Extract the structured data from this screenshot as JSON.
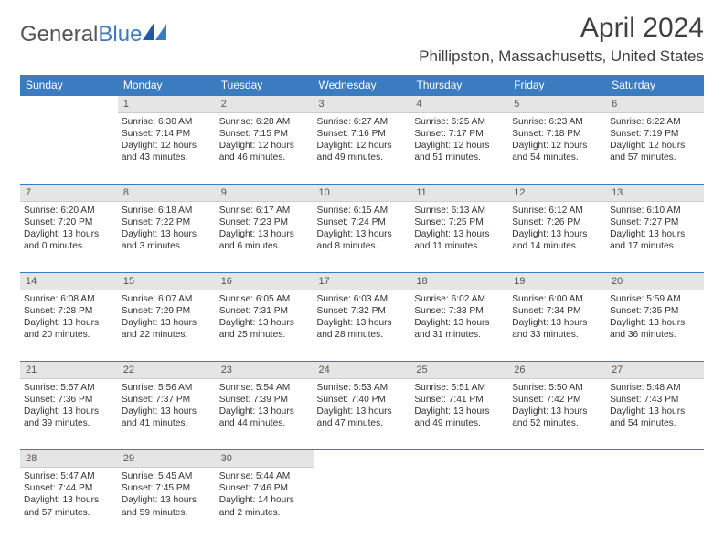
{
  "logo": {
    "text_general": "General",
    "text_blue": "Blue"
  },
  "title": "April 2024",
  "location": "Phillipston, Massachusetts, United States",
  "colors": {
    "header_bg": "#3b7bbf",
    "header_fg": "#ffffff",
    "daynum_bg": "#e5e5e5",
    "border_top": "#3b7bbf",
    "text": "#333333",
    "page_bg": "#ffffff"
  },
  "columns": [
    "Sunday",
    "Monday",
    "Tuesday",
    "Wednesday",
    "Thursday",
    "Friday",
    "Saturday"
  ],
  "weeks": [
    {
      "nums": [
        "",
        "1",
        "2",
        "3",
        "4",
        "5",
        "6"
      ],
      "cells": [
        null,
        {
          "sunrise": "6:30 AM",
          "sunset": "7:14 PM",
          "daylight": "12 hours and 43 minutes."
        },
        {
          "sunrise": "6:28 AM",
          "sunset": "7:15 PM",
          "daylight": "12 hours and 46 minutes."
        },
        {
          "sunrise": "6:27 AM",
          "sunset": "7:16 PM",
          "daylight": "12 hours and 49 minutes."
        },
        {
          "sunrise": "6:25 AM",
          "sunset": "7:17 PM",
          "daylight": "12 hours and 51 minutes."
        },
        {
          "sunrise": "6:23 AM",
          "sunset": "7:18 PM",
          "daylight": "12 hours and 54 minutes."
        },
        {
          "sunrise": "6:22 AM",
          "sunset": "7:19 PM",
          "daylight": "12 hours and 57 minutes."
        }
      ]
    },
    {
      "nums": [
        "7",
        "8",
        "9",
        "10",
        "11",
        "12",
        "13"
      ],
      "cells": [
        {
          "sunrise": "6:20 AM",
          "sunset": "7:20 PM",
          "daylight": "13 hours and 0 minutes."
        },
        {
          "sunrise": "6:18 AM",
          "sunset": "7:22 PM",
          "daylight": "13 hours and 3 minutes."
        },
        {
          "sunrise": "6:17 AM",
          "sunset": "7:23 PM",
          "daylight": "13 hours and 6 minutes."
        },
        {
          "sunrise": "6:15 AM",
          "sunset": "7:24 PM",
          "daylight": "13 hours and 8 minutes."
        },
        {
          "sunrise": "6:13 AM",
          "sunset": "7:25 PM",
          "daylight": "13 hours and 11 minutes."
        },
        {
          "sunrise": "6:12 AM",
          "sunset": "7:26 PM",
          "daylight": "13 hours and 14 minutes."
        },
        {
          "sunrise": "6:10 AM",
          "sunset": "7:27 PM",
          "daylight": "13 hours and 17 minutes."
        }
      ]
    },
    {
      "nums": [
        "14",
        "15",
        "16",
        "17",
        "18",
        "19",
        "20"
      ],
      "cells": [
        {
          "sunrise": "6:08 AM",
          "sunset": "7:28 PM",
          "daylight": "13 hours and 20 minutes."
        },
        {
          "sunrise": "6:07 AM",
          "sunset": "7:29 PM",
          "daylight": "13 hours and 22 minutes."
        },
        {
          "sunrise": "6:05 AM",
          "sunset": "7:31 PM",
          "daylight": "13 hours and 25 minutes."
        },
        {
          "sunrise": "6:03 AM",
          "sunset": "7:32 PM",
          "daylight": "13 hours and 28 minutes."
        },
        {
          "sunrise": "6:02 AM",
          "sunset": "7:33 PM",
          "daylight": "13 hours and 31 minutes."
        },
        {
          "sunrise": "6:00 AM",
          "sunset": "7:34 PM",
          "daylight": "13 hours and 33 minutes."
        },
        {
          "sunrise": "5:59 AM",
          "sunset": "7:35 PM",
          "daylight": "13 hours and 36 minutes."
        }
      ]
    },
    {
      "nums": [
        "21",
        "22",
        "23",
        "24",
        "25",
        "26",
        "27"
      ],
      "cells": [
        {
          "sunrise": "5:57 AM",
          "sunset": "7:36 PM",
          "daylight": "13 hours and 39 minutes."
        },
        {
          "sunrise": "5:56 AM",
          "sunset": "7:37 PM",
          "daylight": "13 hours and 41 minutes."
        },
        {
          "sunrise": "5:54 AM",
          "sunset": "7:39 PM",
          "daylight": "13 hours and 44 minutes."
        },
        {
          "sunrise": "5:53 AM",
          "sunset": "7:40 PM",
          "daylight": "13 hours and 47 minutes."
        },
        {
          "sunrise": "5:51 AM",
          "sunset": "7:41 PM",
          "daylight": "13 hours and 49 minutes."
        },
        {
          "sunrise": "5:50 AM",
          "sunset": "7:42 PM",
          "daylight": "13 hours and 52 minutes."
        },
        {
          "sunrise": "5:48 AM",
          "sunset": "7:43 PM",
          "daylight": "13 hours and 54 minutes."
        }
      ]
    },
    {
      "nums": [
        "28",
        "29",
        "30",
        "",
        "",
        "",
        ""
      ],
      "cells": [
        {
          "sunrise": "5:47 AM",
          "sunset": "7:44 PM",
          "daylight": "13 hours and 57 minutes."
        },
        {
          "sunrise": "5:45 AM",
          "sunset": "7:45 PM",
          "daylight": "13 hours and 59 minutes."
        },
        {
          "sunrise": "5:44 AM",
          "sunset": "7:46 PM",
          "daylight": "14 hours and 2 minutes."
        },
        null,
        null,
        null,
        null
      ]
    }
  ]
}
